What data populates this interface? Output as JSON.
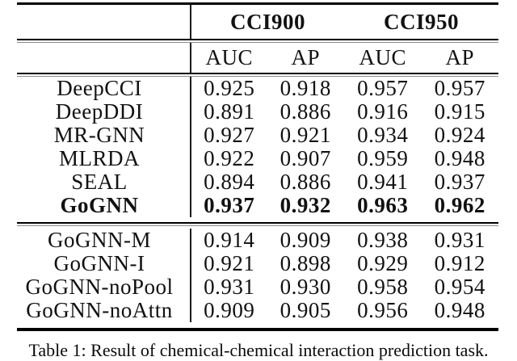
{
  "page": {
    "background_color": "#ffffff",
    "text_color": "#111111",
    "rule_color": "#000000"
  },
  "table": {
    "group_headers": [
      {
        "label": "CCI900"
      },
      {
        "label": "CCI950"
      }
    ],
    "metric_headers": [
      "AUC",
      "AP",
      "AUC",
      "AP"
    ],
    "sections": [
      {
        "name": "baselines-and-gognn",
        "rows": [
          {
            "method": "DeepCCI",
            "values": [
              "0.925",
              "0.918",
              "0.957",
              "0.957"
            ],
            "bold": false
          },
          {
            "method": "DeepDDI",
            "values": [
              "0.891",
              "0.886",
              "0.916",
              "0.915"
            ],
            "bold": false
          },
          {
            "method": "MR-GNN",
            "values": [
              "0.927",
              "0.921",
              "0.934",
              "0.924"
            ],
            "bold": false
          },
          {
            "method": "MLRDA",
            "values": [
              "0.922",
              "0.907",
              "0.959",
              "0.948"
            ],
            "bold": false
          },
          {
            "method": "SEAL",
            "values": [
              "0.894",
              "0.886",
              "0.941",
              "0.937"
            ],
            "bold": false
          },
          {
            "method": "GoGNN",
            "values": [
              "0.937",
              "0.932",
              "0.963",
              "0.962"
            ],
            "bold": true
          }
        ]
      },
      {
        "name": "ablations",
        "rows": [
          {
            "method": "GoGNN-M",
            "values": [
              "0.914",
              "0.909",
              "0.938",
              "0.931"
            ],
            "bold": false
          },
          {
            "method": "GoGNN-I",
            "values": [
              "0.921",
              "0.898",
              "0.929",
              "0.912"
            ],
            "bold": false
          },
          {
            "method": "GoGNN-noPool",
            "values": [
              "0.931",
              "0.930",
              "0.958",
              "0.954"
            ],
            "bold": false
          },
          {
            "method": "GoGNN-noAttn",
            "values": [
              "0.909",
              "0.905",
              "0.956",
              "0.948"
            ],
            "bold": false
          }
        ]
      }
    ]
  },
  "caption": "Table 1: Result of chemical-chemical interaction prediction task."
}
